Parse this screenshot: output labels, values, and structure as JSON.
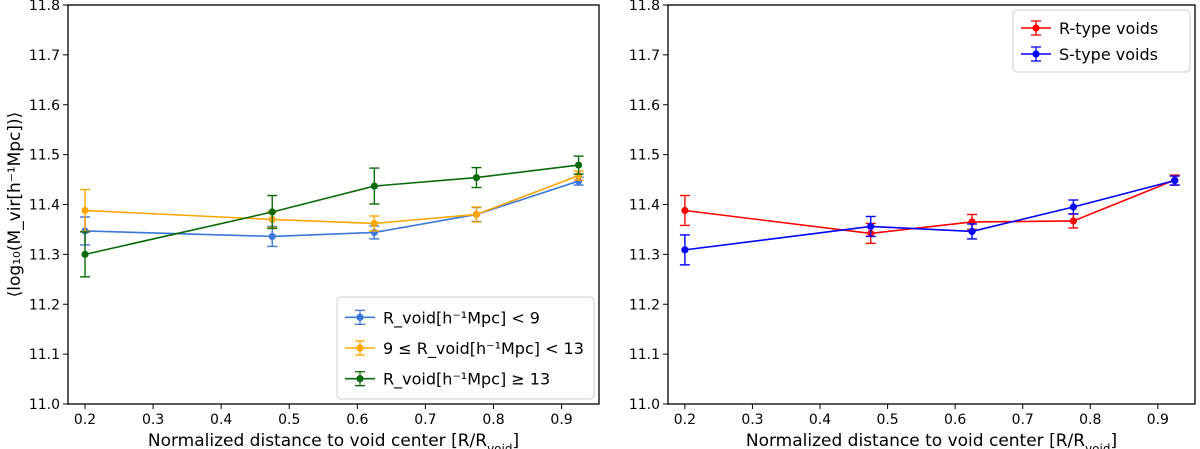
{
  "chart_data": [
    {
      "type": "line",
      "xlabel": "Normalized distance to void center [R/R",
      "xlabel_sub": "void",
      "xlabel_tail": "]",
      "ylabel": "⟨log₁₀(M_vir[h⁻¹Mpc])⟩",
      "xlim": [
        0.175,
        0.955
      ],
      "ylim": [
        11.0,
        11.8
      ],
      "xticks": [
        "0.2",
        "0.3",
        "0.4",
        "0.5",
        "0.6",
        "0.7",
        "0.8",
        "0.9"
      ],
      "yticks": [
        "11.0",
        "11.1",
        "11.2",
        "11.3",
        "11.4",
        "11.5",
        "11.6",
        "11.7",
        "11.8"
      ],
      "legend_position": "bottom-right",
      "grid": false,
      "series": [
        {
          "name": "R_void[h⁻¹Mpc] < 9",
          "color": "#3b78d8",
          "x": [
            0.2,
            0.475,
            0.625,
            0.775,
            0.925
          ],
          "y": [
            11.347,
            11.336,
            11.344,
            11.38,
            11.447
          ],
          "yerr": [
            0.028,
            0.02,
            0.013,
            0.014,
            0.008
          ]
        },
        {
          "name": "9 ≤ R_void[h⁻¹Mpc] < 13",
          "color": "#ffa500",
          "x": [
            0.2,
            0.475,
            0.625,
            0.775,
            0.925
          ],
          "y": [
            11.388,
            11.37,
            11.362,
            11.38,
            11.458
          ],
          "yerr": [
            0.042,
            0.016,
            0.015,
            0.015,
            0.009
          ]
        },
        {
          "name": "R_void[h⁻¹Mpc] ≥ 13",
          "color": "#0a6b0a",
          "x": [
            0.2,
            0.475,
            0.625,
            0.775,
            0.925
          ],
          "y": [
            11.3,
            11.385,
            11.437,
            11.454,
            11.479
          ],
          "yerr": [
            0.045,
            0.033,
            0.036,
            0.02,
            0.018
          ]
        }
      ]
    },
    {
      "type": "line",
      "xlabel": "Normalized distance to void center [R/R",
      "xlabel_sub": "void",
      "xlabel_tail": "]",
      "xlim": [
        0.175,
        0.955
      ],
      "ylim": [
        11.0,
        11.8
      ],
      "xticks": [
        "0.2",
        "0.3",
        "0.4",
        "0.5",
        "0.6",
        "0.7",
        "0.8",
        "0.9"
      ],
      "yticks": [
        "11.0",
        "11.1",
        "11.2",
        "11.3",
        "11.4",
        "11.5",
        "11.6",
        "11.7",
        "11.8"
      ],
      "legend_position": "top-right",
      "grid": false,
      "series": [
        {
          "name": "R-type voids",
          "color": "#ff0000",
          "x": [
            0.2,
            0.475,
            0.625,
            0.775,
            0.925
          ],
          "y": [
            11.388,
            11.342,
            11.365,
            11.367,
            11.449
          ],
          "yerr": [
            0.03,
            0.02,
            0.015,
            0.014,
            0.01
          ]
        },
        {
          "name": "S-type voids",
          "color": "#0000ff",
          "x": [
            0.2,
            0.475,
            0.625,
            0.775,
            0.925
          ],
          "y": [
            11.309,
            11.356,
            11.346,
            11.395,
            11.448
          ],
          "yerr": [
            0.03,
            0.02,
            0.015,
            0.014,
            0.009
          ]
        }
      ]
    }
  ]
}
